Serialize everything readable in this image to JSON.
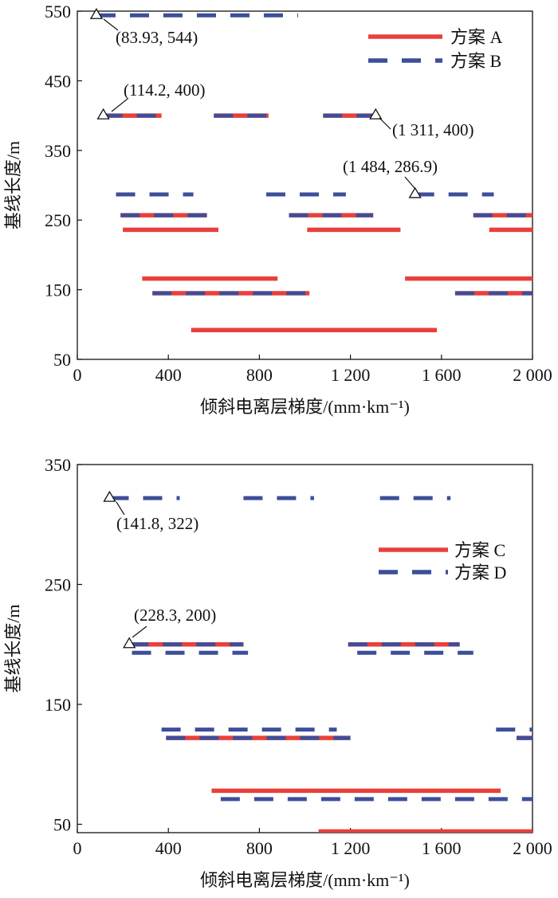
{
  "chart_data": [
    {
      "type": "line",
      "xlabel": "倾斜电离层梯度/(mm·km⁻¹)",
      "ylabel": "基线长度/m",
      "xlim": [
        0,
        2000
      ],
      "ylim": [
        50,
        550
      ],
      "xticks": [
        0,
        400,
        800,
        1200,
        1600,
        2000
      ],
      "xtick_labels": [
        "0",
        "400",
        "800",
        "1 200",
        "1 600",
        "2 000"
      ],
      "yticks": [
        50,
        150,
        250,
        350,
        450,
        550
      ],
      "ytick_labels": [
        "50",
        "150",
        "250",
        "350",
        "450",
        "550"
      ],
      "legend_position": "top-right",
      "series": [
        {
          "name": "方案 A",
          "color": "#e8403a",
          "style": "solid",
          "segments": [
            {
              "y": 400,
              "x": [
                114.2,
                370
              ]
            },
            {
              "y": 400,
              "x": [
                600,
                840
              ]
            },
            {
              "y": 400,
              "x": [
                1080,
                1311
              ]
            },
            {
              "y": 257,
              "x": [
                190,
                570
              ]
            },
            {
              "y": 257,
              "x": [
                930,
                1300
              ]
            },
            {
              "y": 257,
              "x": [
                1740,
                2000
              ]
            },
            {
              "y": 236,
              "x": [
                200,
                620
              ]
            },
            {
              "y": 236,
              "x": [
                1010,
                1420
              ]
            },
            {
              "y": 236,
              "x": [
                1810,
                2000
              ]
            },
            {
              "y": 166,
              "x": [
                285,
                880
              ]
            },
            {
              "y": 166,
              "x": [
                1440,
                2000
              ]
            },
            {
              "y": 145,
              "x": [
                330,
                1020
              ]
            },
            {
              "y": 145,
              "x": [
                1660,
                2000
              ]
            },
            {
              "y": 92,
              "x": [
                500,
                1580
              ]
            }
          ]
        },
        {
          "name": "方案 B",
          "color": "#3d4e9a",
          "style": "dashed",
          "segments": [
            {
              "y": 544,
              "x": [
                83.93,
                970
              ]
            },
            {
              "y": 400,
              "x": [
                114.2,
                360
              ]
            },
            {
              "y": 400,
              "x": [
                600,
                830
              ]
            },
            {
              "y": 400,
              "x": [
                1080,
                1311
              ]
            },
            {
              "y": 286.9,
              "x": [
                170,
                510
              ]
            },
            {
              "y": 286.9,
              "x": [
                830,
                1180
              ]
            },
            {
              "y": 286.9,
              "x": [
                1484,
                1830
              ]
            },
            {
              "y": 257,
              "x": [
                190,
                570
              ]
            },
            {
              "y": 257,
              "x": [
                930,
                1300
              ]
            },
            {
              "y": 257,
              "x": [
                1740,
                2000
              ]
            },
            {
              "y": 145,
              "x": [
                330,
                1020
              ]
            },
            {
              "y": 145,
              "x": [
                1660,
                2000
              ]
            }
          ]
        }
      ],
      "annotations": [
        {
          "label": "(83.93, 544)",
          "x": 83.93,
          "y": 544
        },
        {
          "label": "(114.2, 400)",
          "x": 114.2,
          "y": 400
        },
        {
          "label": "(1 311, 400)",
          "x": 1311,
          "y": 400
        },
        {
          "label": "(1 484, 286.9)",
          "x": 1484,
          "y": 286.9
        }
      ]
    },
    {
      "type": "line",
      "xlabel": "倾斜电离层梯度/(mm·km⁻¹)",
      "ylabel": "基线长度/m",
      "xlim": [
        0,
        2000
      ],
      "ylim": [
        43,
        350
      ],
      "xticks": [
        0,
        400,
        800,
        1200,
        1600,
        2000
      ],
      "xtick_labels": [
        "0",
        "400",
        "800",
        "1 200",
        "1 600",
        "2 000"
      ],
      "yticks": [
        50,
        150,
        250,
        350
      ],
      "ytick_labels": [
        "50",
        "150",
        "250",
        "350"
      ],
      "legend_position": "upper-right",
      "series": [
        {
          "name": "方案 C",
          "color": "#e8403a",
          "style": "solid",
          "segments": [
            {
              "y": 200,
              "x": [
                228.3,
                730
              ]
            },
            {
              "y": 200,
              "x": [
                1190,
                1680
              ]
            },
            {
              "y": 122,
              "x": [
                390,
                1200
              ]
            },
            {
              "y": 122,
              "x": [
                1930,
                2000
              ]
            },
            {
              "y": 78,
              "x": [
                590,
                1860
              ]
            },
            {
              "y": 44,
              "x": [
                1060,
                2000
              ]
            }
          ]
        },
        {
          "name": "方案 D",
          "color": "#3d4e9a",
          "style": "dashed",
          "segments": [
            {
              "y": 322,
              "x": [
                141.8,
                450
              ]
            },
            {
              "y": 322,
              "x": [
                730,
                1040
              ]
            },
            {
              "y": 322,
              "x": [
                1330,
                1640
              ]
            },
            {
              "y": 200,
              "x": [
                228.3,
                730
              ]
            },
            {
              "y": 200,
              "x": [
                1190,
                1680
              ]
            },
            {
              "y": 193,
              "x": [
                240,
                750
              ]
            },
            {
              "y": 193,
              "x": [
                1230,
                1740
              ]
            },
            {
              "y": 129,
              "x": [
                370,
                1140
              ]
            },
            {
              "y": 129,
              "x": [
                1840,
                2000
              ]
            },
            {
              "y": 122,
              "x": [
                390,
                1200
              ]
            },
            {
              "y": 122,
              "x": [
                1930,
                2000
              ]
            },
            {
              "y": 71,
              "x": [
                630,
                2000
              ]
            }
          ]
        }
      ],
      "annotations": [
        {
          "label": "(141.8, 322)",
          "x": 141.8,
          "y": 322
        },
        {
          "label": "(228.3, 200)",
          "x": 228.3,
          "y": 200
        }
      ]
    }
  ]
}
